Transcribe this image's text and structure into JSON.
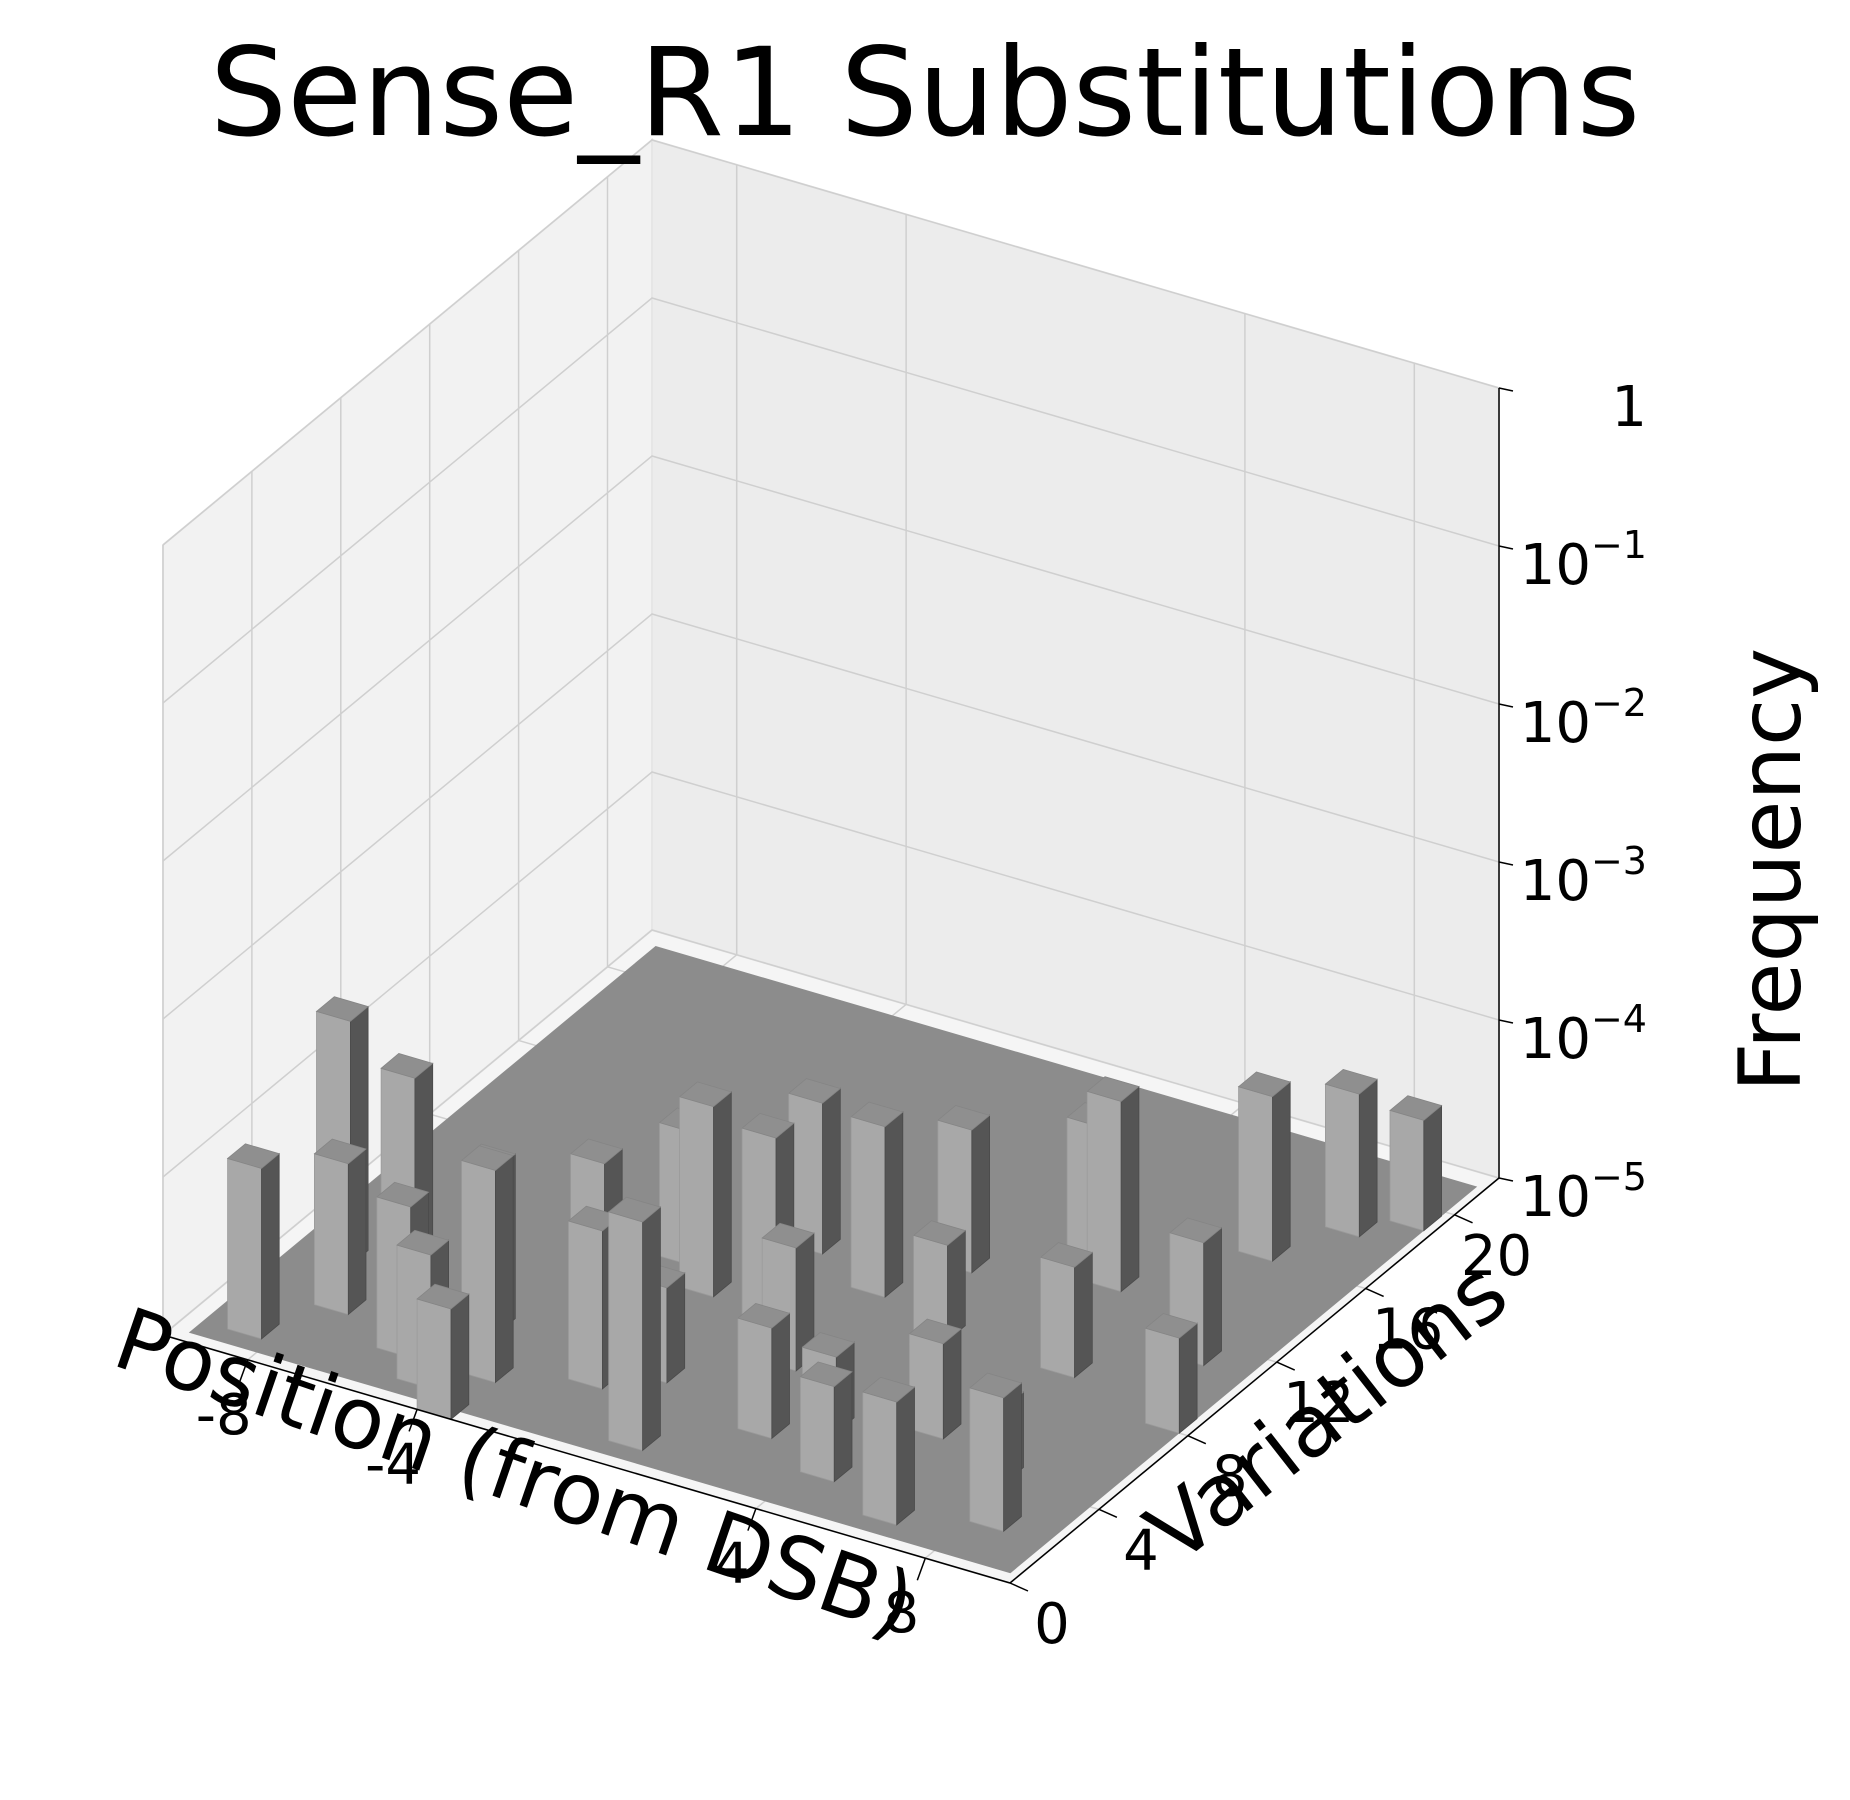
{
  "chart_data": {
    "type": "bar3d",
    "title": "Sense_R1 Substitutions",
    "xlabel": "Position (from DSB)",
    "ylabel": "Variations",
    "zlabel": "Frequency",
    "x_ticks": [
      "-8",
      "-4",
      "4",
      "8"
    ],
    "x_tick_values": [
      -8,
      -4,
      4,
      8
    ],
    "y_ticks": [
      "0",
      "4",
      "8",
      "12",
      "16",
      "20"
    ],
    "y_tick_values": [
      0,
      4,
      8,
      12,
      16,
      20
    ],
    "z_ticks": [
      {
        "base": "10",
        "exp": "−5",
        "value": 1e-05
      },
      {
        "base": "10",
        "exp": "−4",
        "value": 0.0001
      },
      {
        "base": "10",
        "exp": "−3",
        "value": 0.001
      },
      {
        "base": "10",
        "exp": "−2",
        "value": 0.01
      },
      {
        "base": "10",
        "exp": "−1",
        "value": 0.1
      },
      {
        "base": "1",
        "exp": "",
        "value": 1
      }
    ],
    "z_scale": "log",
    "xlim": [
      -10,
      10
    ],
    "ylim": [
      0,
      22
    ],
    "zlim": [
      1e-05,
      1
    ],
    "grid": true,
    "bars": [
      {
        "x": -9,
        "y": 1,
        "z": 0.00012
      },
      {
        "x": -9,
        "y": 5,
        "z": 0.00035
      },
      {
        "x": -8,
        "y": 3,
        "z": 9e-05
      },
      {
        "x": -8,
        "y": 6,
        "z": 0.00014
      },
      {
        "x": -6,
        "y": 2,
        "z": 9e-05
      },
      {
        "x": -5,
        "y": 1,
        "z": 7e-05
      },
      {
        "x": -5,
        "y": 4,
        "z": 0.00011
      },
      {
        "x": -4,
        "y": 0,
        "z": 5e-05
      },
      {
        "x": -4,
        "y": 2,
        "z": 0.00022
      },
      {
        "x": -3,
        "y": 5,
        "z": 0.00013
      },
      {
        "x": -3,
        "y": 9,
        "z": 7e-05
      },
      {
        "x": -2,
        "y": 3,
        "z": 0.0001
      },
      {
        "x": -2,
        "y": 8,
        "z": 0.00016
      },
      {
        "x": -1,
        "y": 4,
        "z": 4e-05
      },
      {
        "x": -1,
        "y": 11,
        "z": 9e-05
      },
      {
        "x": 0,
        "y": 1,
        "z": 0.00028
      },
      {
        "x": 0,
        "y": 7,
        "z": 0.00019
      },
      {
        "x": 1,
        "y": 6,
        "z": 6e-05
      },
      {
        "x": 1,
        "y": 10,
        "z": 0.00012
      },
      {
        "x": 2,
        "y": 3,
        "z": 5e-05
      },
      {
        "x": 2,
        "y": 12,
        "z": 8e-05
      },
      {
        "x": 3,
        "y": 4,
        "z": 3e-05
      },
      {
        "x": 3,
        "y": 9,
        "z": 4e-05
      },
      {
        "x": 4,
        "y": 2,
        "z": 4e-05
      },
      {
        "x": 4,
        "y": 14,
        "z": 7e-05
      },
      {
        "x": 5,
        "y": 5,
        "z": 4e-05
      },
      {
        "x": 5,
        "y": 13,
        "z": 0.00016
      },
      {
        "x": 6,
        "y": 1,
        "z": 6e-05
      },
      {
        "x": 6,
        "y": 9,
        "z": 5e-05
      },
      {
        "x": 7,
        "y": 4,
        "z": 3e-05
      },
      {
        "x": 7,
        "y": 16,
        "z": 0.00011
      },
      {
        "x": 8,
        "y": 2,
        "z": 7e-05
      },
      {
        "x": 8,
        "y": 11,
        "z": 6e-05
      },
      {
        "x": 8,
        "y": 18,
        "z": 8e-05
      },
      {
        "x": 9,
        "y": 8,
        "z": 4e-05
      },
      {
        "x": 9,
        "y": 19,
        "z": 5e-05
      }
    ]
  }
}
